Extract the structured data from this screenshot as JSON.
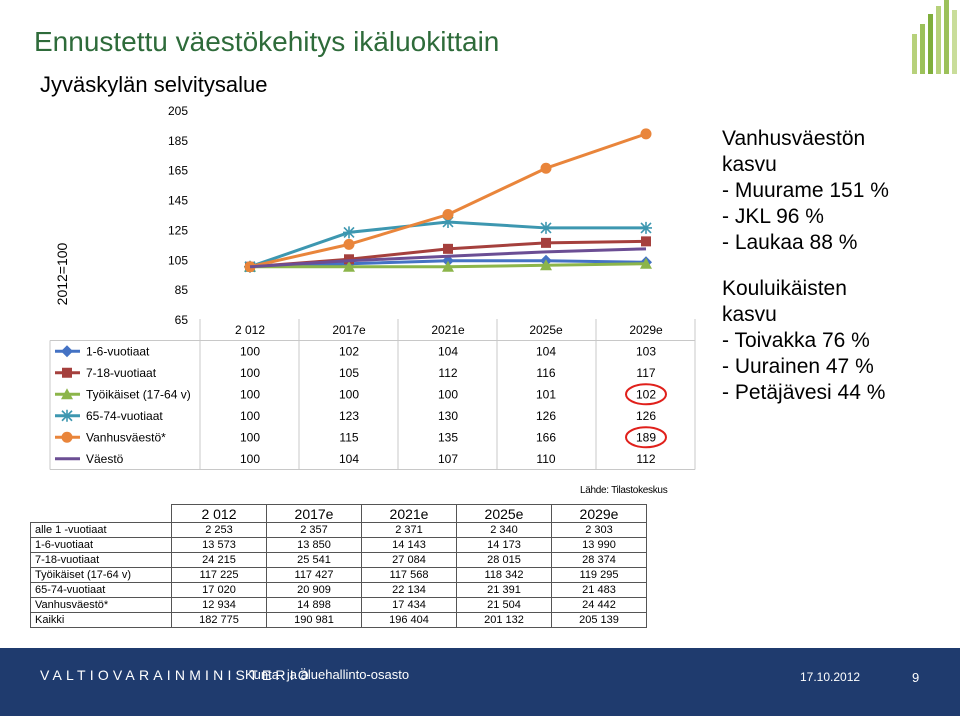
{
  "title": "Ennustettu väestökehitys ikäluokittain",
  "subtitle": "Jyväskylän selvitysalue",
  "chart_data": {
    "type": "line",
    "ylabel": "2012=100",
    "ylim": [
      65,
      205
    ],
    "y_ticks": [
      "205",
      "185",
      "165",
      "145",
      "125",
      "105",
      "85",
      "65"
    ],
    "categories": [
      "2 012",
      "2017e",
      "2021e",
      "2025e",
      "2029e"
    ],
    "series": [
      {
        "name": "1-6-vuotiaat",
        "values": [
          100,
          102,
          104,
          104,
          103
        ],
        "color": "#4472c4",
        "marker": "diamond"
      },
      {
        "name": "7-18-vuotiaat",
        "values": [
          100,
          105,
          112,
          116,
          117
        ],
        "color": "#a5403d",
        "marker": "square"
      },
      {
        "name": "Työikäiset (17-64 v)",
        "values": [
          100,
          100,
          100,
          101,
          102
        ],
        "color": "#8cb54a",
        "marker": "triangle"
      },
      {
        "name": "65-74-vuotiaat",
        "values": [
          100,
          123,
          130,
          126,
          126
        ],
        "color": "#3d97b0",
        "marker": "star"
      },
      {
        "name": "Vanhusväestö*",
        "values": [
          100,
          115,
          135,
          166,
          189
        ],
        "color": "#e9853b",
        "marker": "circle"
      },
      {
        "name": "Väestö",
        "values": [
          100,
          104,
          107,
          110,
          112
        ],
        "color": "#6b4e94",
        "marker": "none"
      }
    ],
    "highlighted": {
      "series_indices": [
        2,
        4
      ],
      "category_index": 4,
      "color": "#e0201b"
    },
    "legend": "data table below plot",
    "grid": false
  },
  "side_text": [
    {
      "lines": [
        "Vanhusväestön",
        "kasvu",
        "- Muurame 151 %",
        "- JKL 96 %",
        "- Laukaa 88 %"
      ]
    },
    {
      "lines": [
        "Kouluikäisten",
        "kasvu",
        "- Toivakka 76 %",
        "- Uurainen 47 %",
        "- Petäjävesi 44 %"
      ]
    }
  ],
  "source": "Lähde: Tilastokeskus",
  "table": {
    "headers": [
      "2 012",
      "2017e",
      "2021e",
      "2025e",
      "2029e"
    ],
    "rows": [
      {
        "label": "alle 1 -vuotiaat",
        "values": [
          "2 253",
          "2 357",
          "2 371",
          "2 340",
          "2 303"
        ]
      },
      {
        "label": "1-6-vuotiaat",
        "values": [
          "13 573",
          "13 850",
          "14 143",
          "14 173",
          "13 990"
        ]
      },
      {
        "label": "7-18-vuotiaat",
        "values": [
          "24 215",
          "25 541",
          "27 084",
          "28 015",
          "28 374"
        ]
      },
      {
        "label": "Työikäiset (17-64 v)",
        "values": [
          "117 225",
          "117 427",
          "117 568",
          "118 342",
          "119 295"
        ]
      },
      {
        "label": "65-74-vuotiaat",
        "values": [
          "17 020",
          "20 909",
          "22 134",
          "21 391",
          "21 483"
        ]
      },
      {
        "label": "Vanhusväestö*",
        "values": [
          "12 934",
          "14 898",
          "17 434",
          "21 504",
          "24 442"
        ]
      },
      {
        "label": "Kaikki",
        "values": [
          "182 775",
          "190 981",
          "196 404",
          "201 132",
          "205 139"
        ]
      }
    ]
  },
  "footer": {
    "ministry": "VALTIOVARAINMINISTERIÖ",
    "department": "Kunta- ja aluehallinto-osasto",
    "date": "17.10.2012",
    "page": "9",
    "background_color": "#1f3b6e"
  }
}
